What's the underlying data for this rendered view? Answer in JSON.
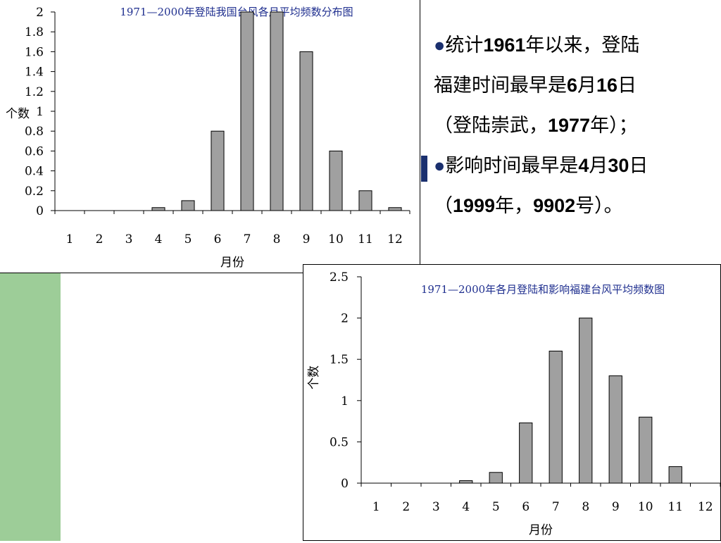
{
  "slide_text": {
    "line1": "●统计1961年以来，登陆",
    "line2": "福建时间最早是6月16日",
    "line3": "（登陆崇武，1977年）；",
    "line4": "●影响时间最早是4月30日",
    "line5": "（1999年，9902号）。"
  },
  "chart_data": [
    {
      "type": "bar",
      "title": "1971—2000年登陆我国台风各月平均频数分布图",
      "xlabel": "月份",
      "ylabel": "个数",
      "categories": [
        "1",
        "2",
        "3",
        "4",
        "5",
        "6",
        "7",
        "8",
        "9",
        "10",
        "11",
        "12"
      ],
      "values": [
        0,
        0,
        0,
        0.03,
        0.1,
        0.8,
        2.0,
        2.0,
        1.6,
        0.6,
        0.2,
        0.03
      ],
      "ylim": [
        0,
        2
      ],
      "yticks": [
        "0",
        "0.2",
        "0.4",
        "0.6",
        "0.8",
        "1",
        "1.2",
        "1.4",
        "1.6",
        "1.8",
        "2"
      ],
      "bar_color": "#a0a0a0",
      "grid": false
    },
    {
      "type": "bar",
      "title": "1971—2000年各月登陆和影响福建台风平均频数图",
      "xlabel": "月份",
      "ylabel": "个数",
      "categories": [
        "1",
        "2",
        "3",
        "4",
        "5",
        "6",
        "7",
        "8",
        "9",
        "10",
        "11",
        "12"
      ],
      "values": [
        0,
        0,
        0,
        0.03,
        0.13,
        0.73,
        1.6,
        2.0,
        1.3,
        0.8,
        0.2,
        0
      ],
      "ylim": [
        0,
        2.5
      ],
      "yticks": [
        "0",
        "0.5",
        "1",
        "1.5",
        "2",
        "2.5"
      ],
      "bar_color": "#a0a0a0",
      "grid": false
    }
  ]
}
